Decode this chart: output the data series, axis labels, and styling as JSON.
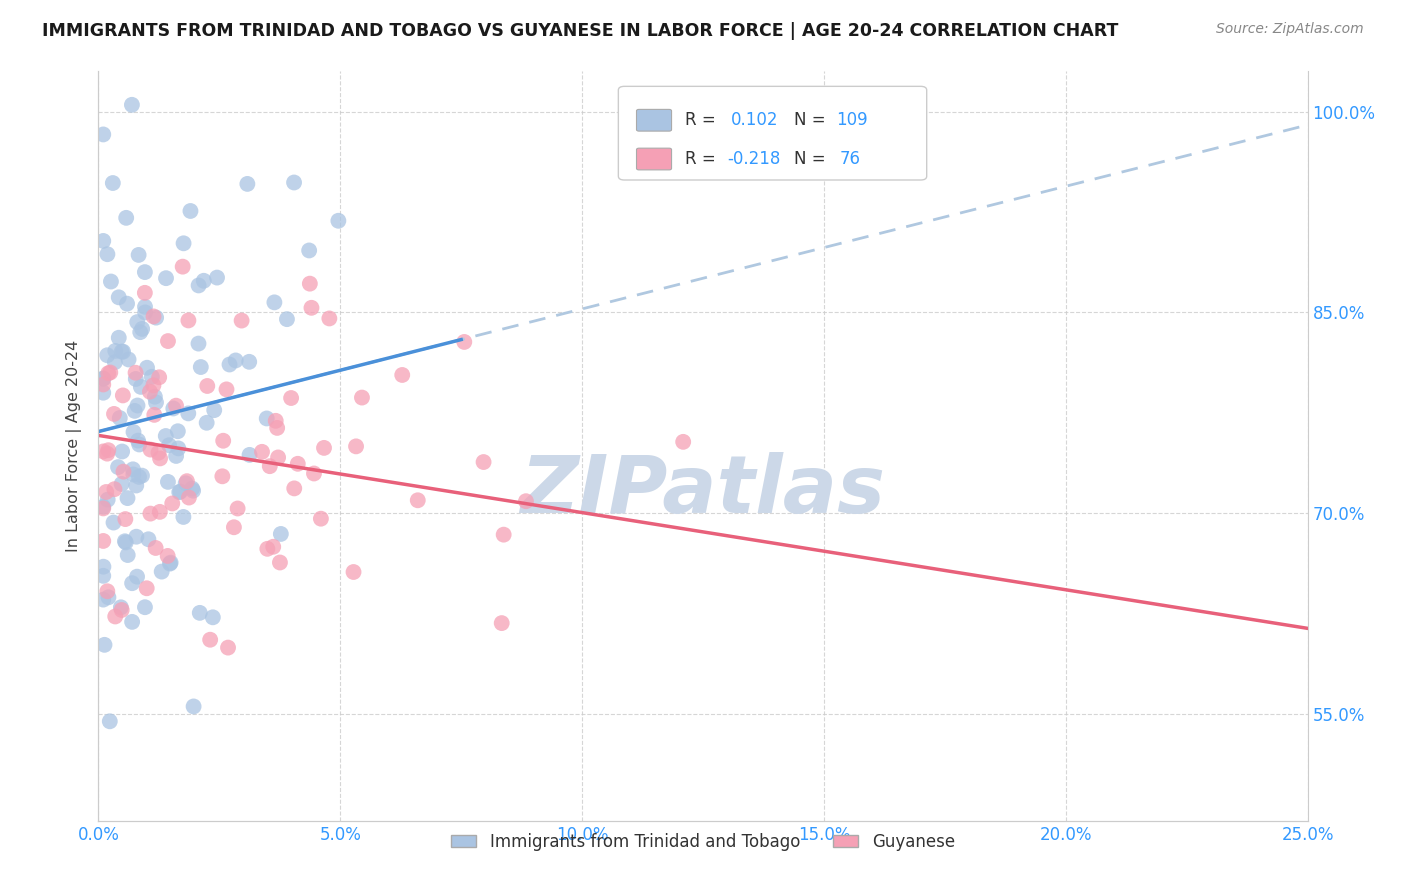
{
  "title": "IMMIGRANTS FROM TRINIDAD AND TOBAGO VS GUYANESE IN LABOR FORCE | AGE 20-24 CORRELATION CHART",
  "source": "Source: ZipAtlas.com",
  "ylabel_label": "In Labor Force | Age 20-24",
  "legend_labels": [
    "Immigrants from Trinidad and Tobago",
    "Guyanese"
  ],
  "R_tt": 0.102,
  "N_tt": 109,
  "R_gy": -0.218,
  "N_gy": 76,
  "color_tt": "#aac4e2",
  "color_gy": "#f5a0b5",
  "line_color_tt_dash": "#b0c8e0",
  "line_color_tt": "#4a90d9",
  "line_color_gy": "#e8607a",
  "watermark_color": "#ccd8e8",
  "background_color": "#ffffff",
  "blue_text": "#3399ff",
  "xmin": 0.0,
  "xmax": 0.25,
  "ymin": 0.47,
  "ymax": 1.03,
  "xticks": [
    0.0,
    0.05,
    0.1,
    0.15,
    0.2,
    0.25
  ],
  "xticklabels": [
    "0.0%",
    "5.0%",
    "10.0%",
    "15.0%",
    "20.0%",
    "25.0%"
  ],
  "yticks": [
    0.55,
    0.7,
    0.85,
    1.0
  ],
  "yticklabels": [
    "55.0%",
    "70.0%",
    "85.0%",
    "100.0%"
  ]
}
